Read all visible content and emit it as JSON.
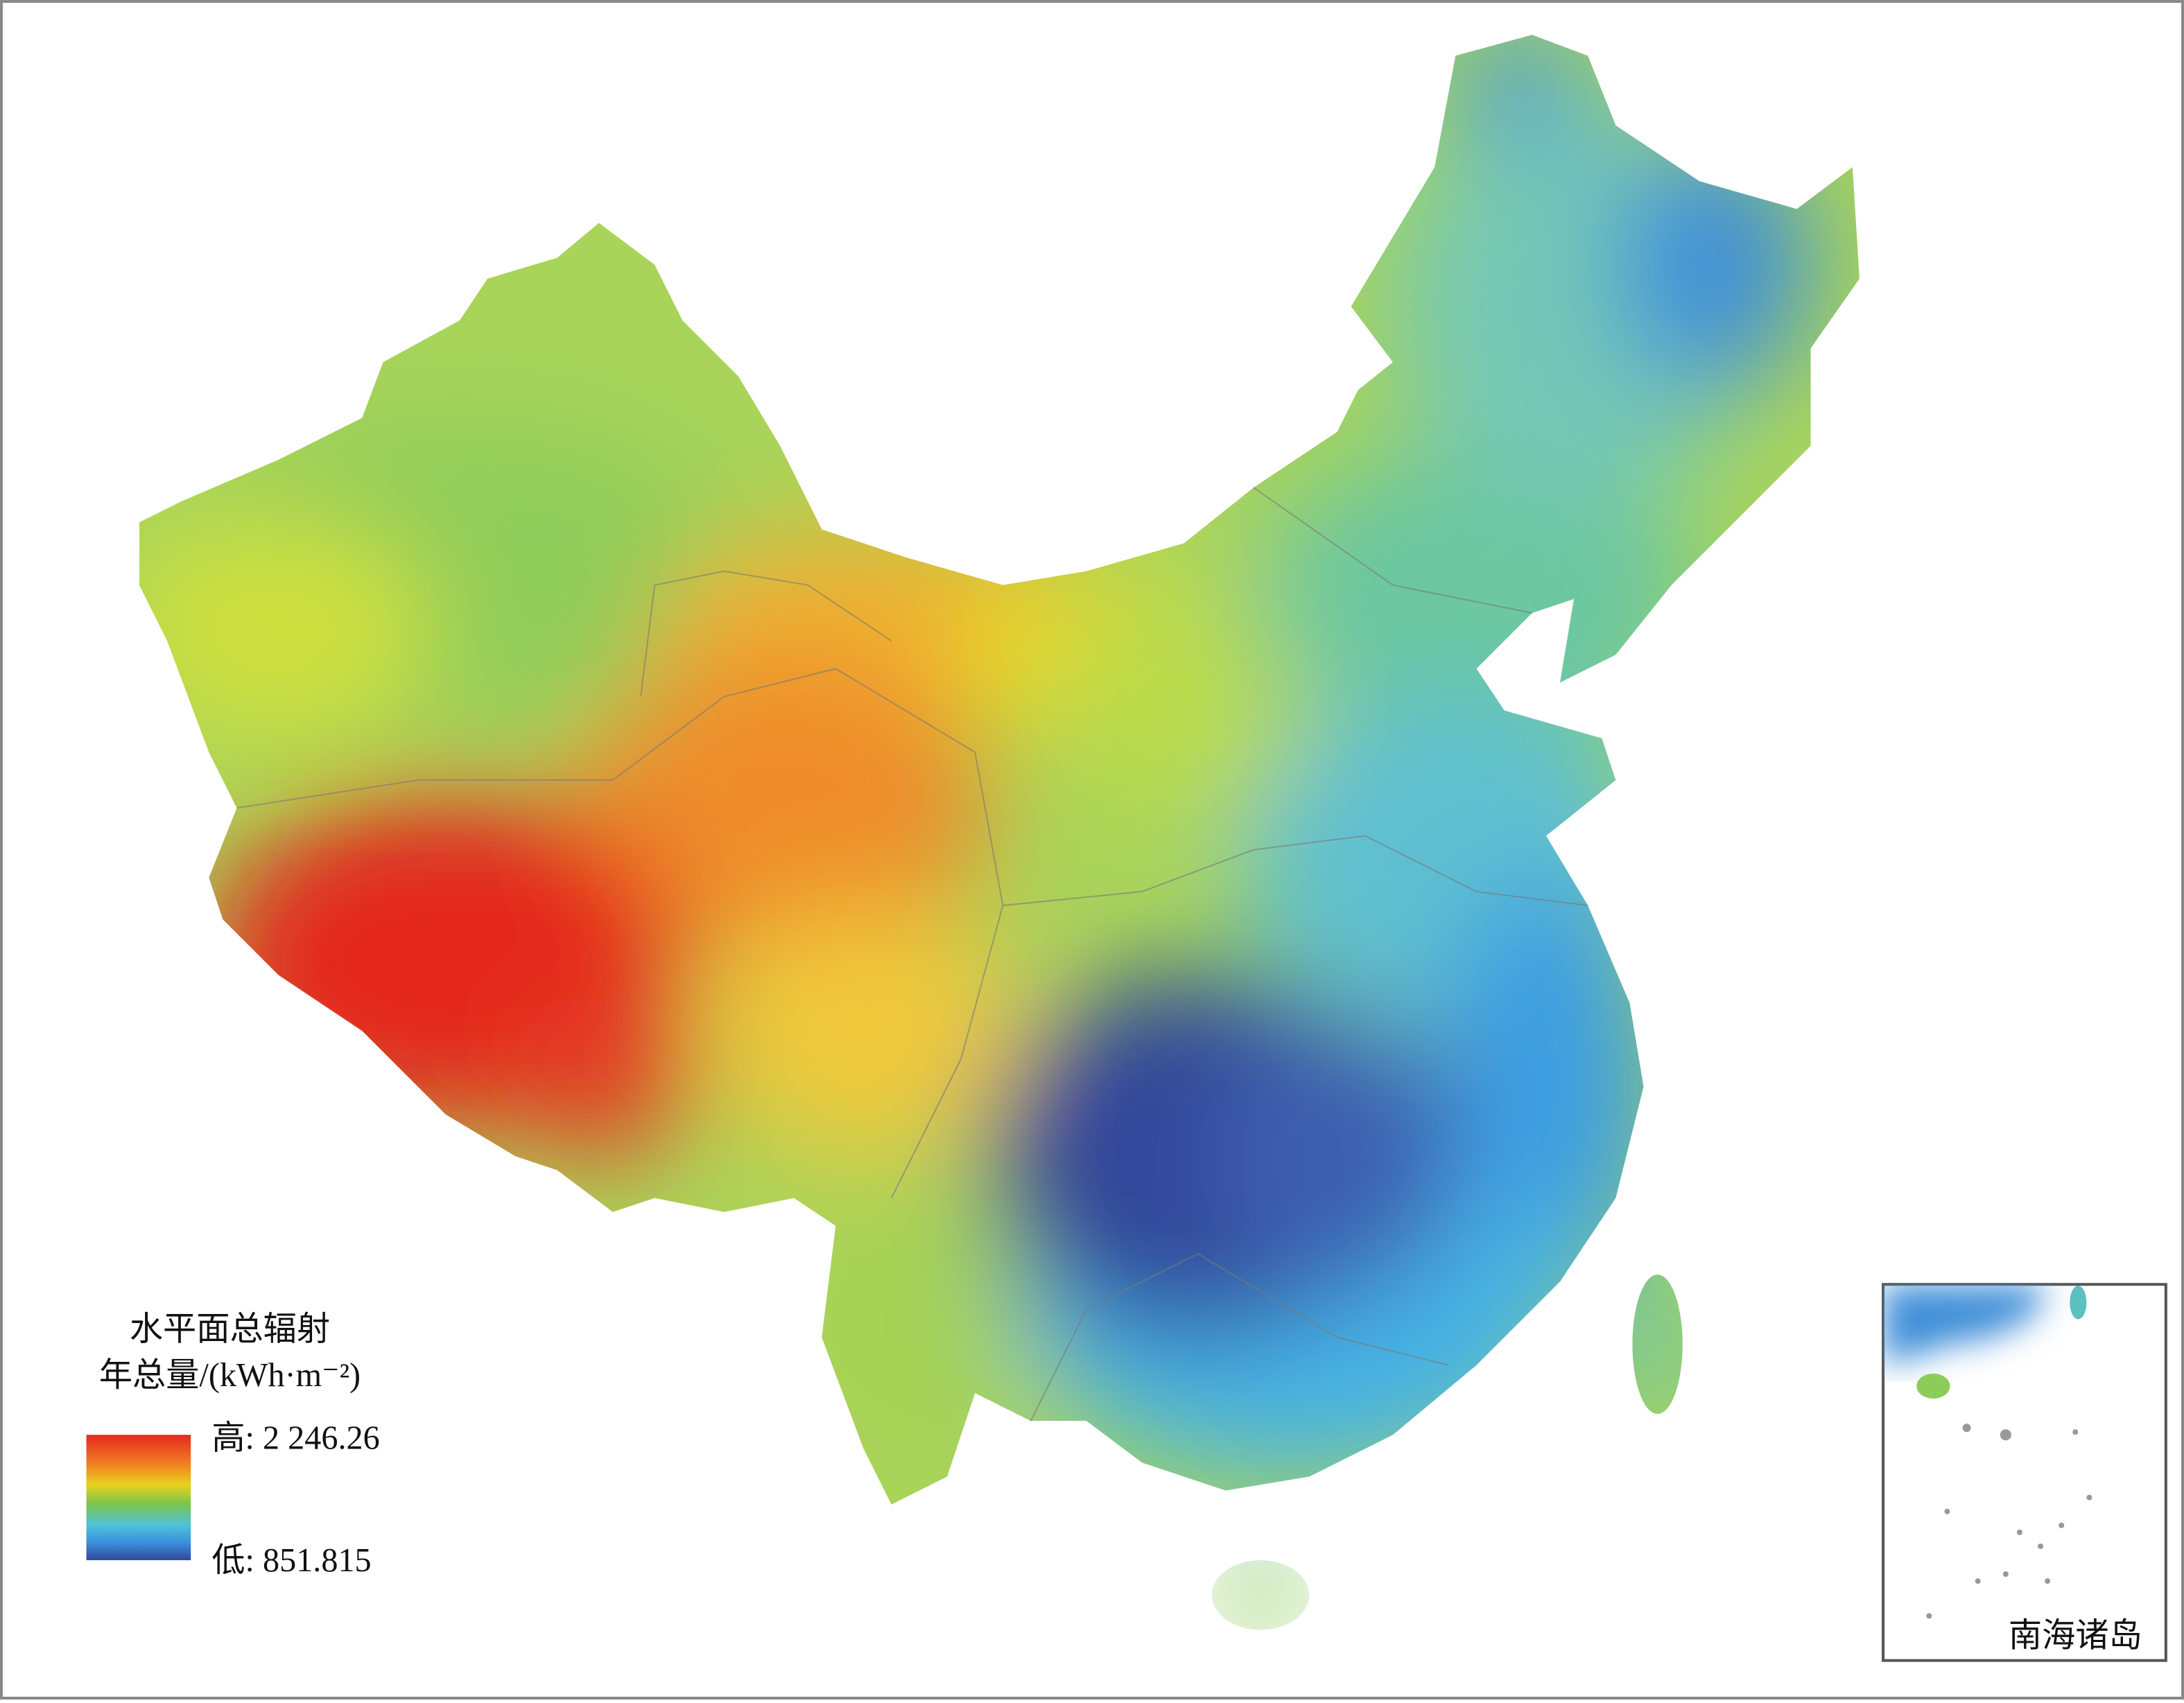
{
  "legend": {
    "title_line1": "水平面总辐射",
    "title_line2": "年总量/(kWh·m⁻²)",
    "high_label": "高: 2 246.26",
    "low_label": "低: 851.815"
  },
  "inset": {
    "label": "南海诸岛"
  }
}
